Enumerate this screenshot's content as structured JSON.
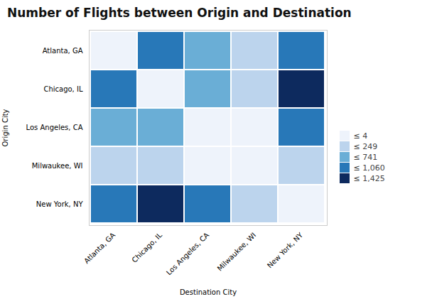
{
  "chart_data": {
    "type": "heatmap",
    "title": "Number of Flights between Origin and Destination",
    "xlabel": "Destination City",
    "ylabel": "Origin City",
    "x": [
      "Atlanta, GA",
      "Chicago, IL",
      "Los Angeles, CA",
      "Milwaukee, WI",
      "New York, NY"
    ],
    "y": [
      "Atlanta, GA",
      "Chicago, IL",
      "Los Angeles, CA",
      "Milwaukee, WI",
      "New York, NY"
    ],
    "values": [
      [
        2,
        850,
        620,
        200,
        750
      ],
      [
        780,
        2,
        500,
        180,
        1425
      ],
      [
        490,
        460,
        2,
        4,
        900
      ],
      [
        200,
        210,
        3,
        2,
        180
      ],
      [
        800,
        1380,
        850,
        180,
        2
      ]
    ],
    "legend_bins": [
      4,
      249,
      741,
      1060,
      1425
    ],
    "legend_labels": [
      "≤ 4",
      "≤ 249",
      "≤ 741",
      "≤ 1,060",
      "≤ 1,425"
    ],
    "bin_colors": [
      "#eef3fb",
      "#bcd4ed",
      "#6aaed6",
      "#2878b8",
      "#0d2a5e"
    ],
    "legend": "right"
  }
}
